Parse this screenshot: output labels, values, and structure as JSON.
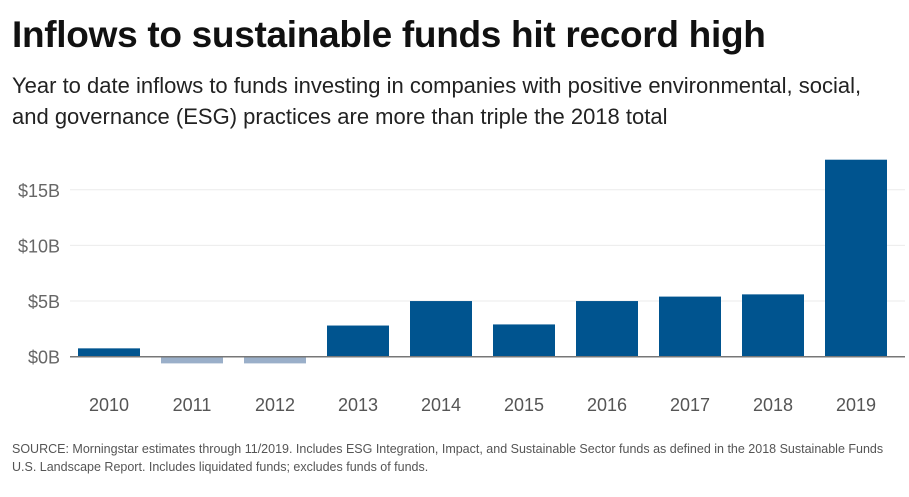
{
  "chart_data": {
    "type": "bar",
    "title": "Inflows to sustainable funds hit record high",
    "subtitle": "Year to date inflows to funds investing in companies with positive environmental, social, and governance (ESG) practices are more than triple the 2018 total",
    "categories": [
      "2010",
      "2011",
      "2012",
      "2013",
      "2014",
      "2015",
      "2016",
      "2017",
      "2018",
      "2019"
    ],
    "values": [
      0.75,
      -0.6,
      -0.6,
      2.8,
      5.0,
      2.9,
      5.0,
      5.4,
      5.6,
      17.7
    ],
    "unit": "billion USD",
    "yticks": [
      0,
      5,
      10,
      15
    ],
    "ytick_labels": [
      "$0B",
      "$5B",
      "$10B",
      "$15B"
    ],
    "ylim": [
      -1,
      18
    ],
    "grid": true,
    "colors": {
      "positive": "#00548f",
      "negative": "#9aafc9"
    },
    "source": "SOURCE: Morningstar estimates through 11/2019. Includes ESG Integration, Impact, and Sustainable Sector funds as defined in the 2018 Sustainable Funds U.S. Landscape Report. Includes liquidated funds; excludes funds of funds."
  }
}
